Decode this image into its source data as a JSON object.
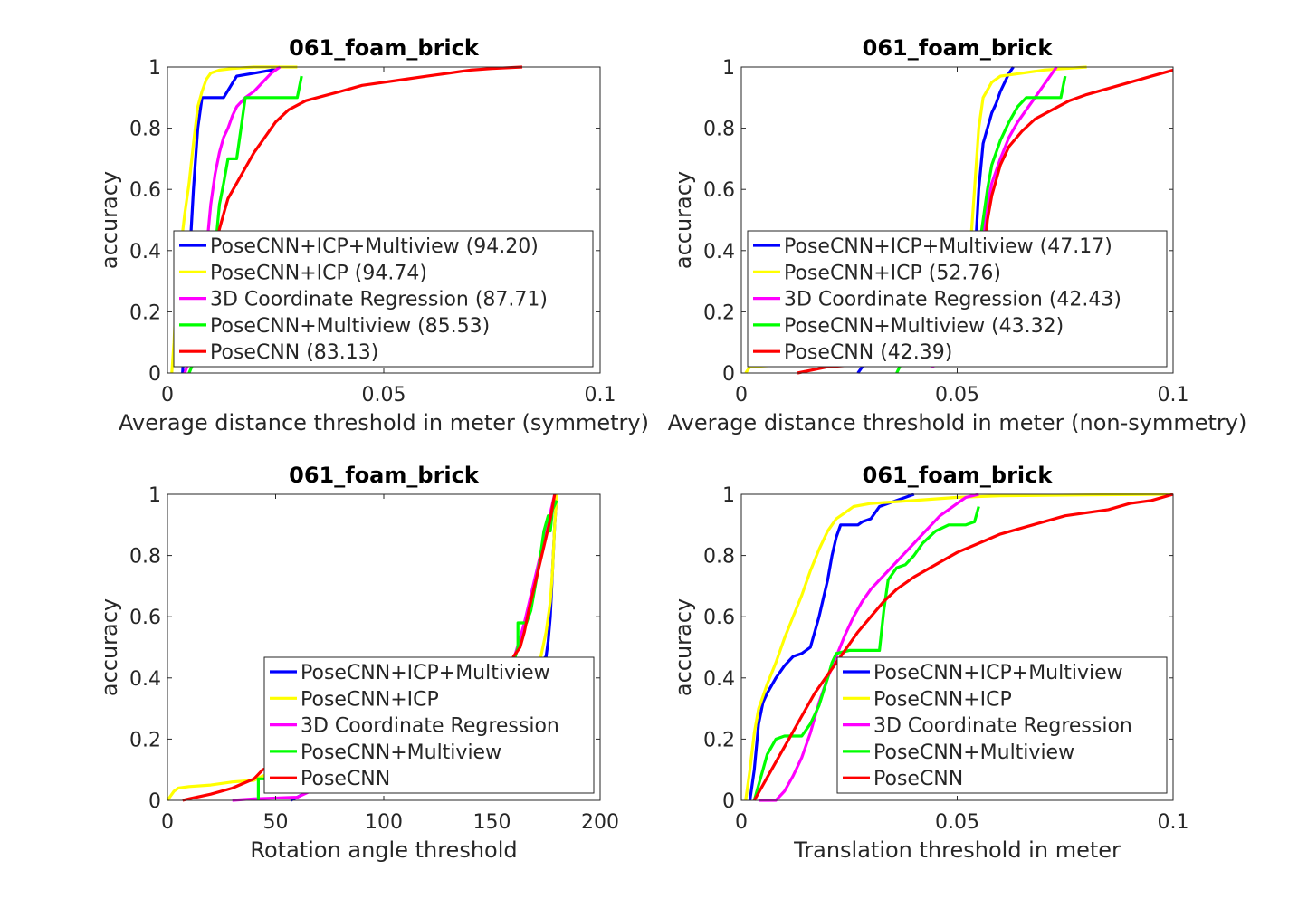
{
  "chart_data": [
    {
      "type": "line",
      "title": "061_foam_brick",
      "xlabel": "Average distance threshold in meter (symmetry)",
      "ylabel": "accuracy",
      "xlim": [
        0,
        0.1
      ],
      "ylim": [
        0,
        1
      ],
      "xticks": [
        0,
        0.05,
        0.1
      ],
      "xtick_labels": [
        "0",
        "0.05",
        "0.1"
      ],
      "yticks": [
        0,
        0.2,
        0.4,
        0.6,
        0.8,
        1
      ],
      "ytick_labels": [
        "0",
        "0.2",
        "0.4",
        "0.6",
        "0.8",
        "1"
      ],
      "legend_position": "bottom-right",
      "series": [
        {
          "name": "PoseCNN+ICP+Multiview (94.20)",
          "color": "#0000ff",
          "x": [
            0.0035,
            0.004,
            0.005,
            0.006,
            0.007,
            0.008,
            0.009,
            0.01,
            0.013,
            0.016,
            0.02,
            0.024,
            0.025
          ],
          "y": [
            0.0,
            0.12,
            0.35,
            0.6,
            0.8,
            0.9,
            0.9,
            0.9,
            0.9,
            0.97,
            0.98,
            0.99,
            1.0
          ]
        },
        {
          "name": "PoseCNN+ICP (94.74)",
          "color": "#ffff00",
          "x": [
            0.001,
            0.0015,
            0.002,
            0.003,
            0.004,
            0.005,
            0.006,
            0.007,
            0.008,
            0.009,
            0.01,
            0.012,
            0.015,
            0.02,
            0.03
          ],
          "y": [
            0.0,
            0.1,
            0.25,
            0.4,
            0.52,
            0.62,
            0.75,
            0.87,
            0.92,
            0.96,
            0.98,
            0.99,
            0.995,
            1.0,
            1.0
          ]
        },
        {
          "name": "3D Coordinate Regression (87.71)",
          "color": "#ff00ff",
          "x": [
            0.004,
            0.006,
            0.008,
            0.009,
            0.01,
            0.011,
            0.012,
            0.013,
            0.014,
            0.015,
            0.016,
            0.018,
            0.02,
            0.022,
            0.024,
            0.026
          ],
          "y": [
            0.0,
            0.08,
            0.25,
            0.4,
            0.55,
            0.65,
            0.72,
            0.77,
            0.8,
            0.84,
            0.87,
            0.9,
            0.92,
            0.95,
            0.98,
            1.0
          ]
        },
        {
          "name": "PoseCNN+Multiview (85.53)",
          "color": "#00ff00",
          "x": [
            0.005,
            0.008,
            0.01,
            0.011,
            0.012,
            0.013,
            0.014,
            0.016,
            0.017,
            0.018,
            0.02,
            0.024,
            0.03,
            0.031
          ],
          "y": [
            0.0,
            0.1,
            0.25,
            0.4,
            0.55,
            0.62,
            0.7,
            0.7,
            0.8,
            0.9,
            0.9,
            0.9,
            0.9,
            0.97
          ]
        },
        {
          "name": "PoseCNN (83.13)",
          "color": "#ff0000",
          "x": [
            0.011,
            0.012,
            0.013,
            0.014,
            0.016,
            0.018,
            0.02,
            0.022,
            0.025,
            0.028,
            0.032,
            0.036,
            0.04,
            0.045,
            0.05,
            0.055,
            0.06,
            0.065,
            0.07,
            0.075,
            0.082
          ],
          "y": [
            0.4,
            0.47,
            0.52,
            0.57,
            0.62,
            0.67,
            0.72,
            0.76,
            0.82,
            0.86,
            0.89,
            0.905,
            0.92,
            0.94,
            0.95,
            0.96,
            0.97,
            0.98,
            0.99,
            0.995,
            1.0
          ]
        }
      ]
    },
    {
      "type": "line",
      "title": "061_foam_brick",
      "xlabel": "Average distance threshold in meter (non-symmetry)",
      "ylabel": "accuracy",
      "xlim": [
        0,
        0.1
      ],
      "ylim": [
        0,
        1
      ],
      "xticks": [
        0,
        0.05,
        0.1
      ],
      "xtick_labels": [
        "0",
        "0.05",
        "0.1"
      ],
      "yticks": [
        0,
        0.2,
        0.4,
        0.6,
        0.8,
        1
      ],
      "ytick_labels": [
        "0",
        "0.2",
        "0.4",
        "0.6",
        "0.8",
        "1"
      ],
      "legend_position": "bottom-right",
      "series": [
        {
          "name": "PoseCNN+ICP+Multiview (47.17)",
          "color": "#0000ff",
          "x": [
            0.027,
            0.028,
            0.054,
            0.055,
            0.056,
            0.057,
            0.058,
            0.059,
            0.06,
            0.061,
            0.062,
            0.063
          ],
          "y": [
            0.0,
            0.02,
            0.35,
            0.6,
            0.75,
            0.8,
            0.85,
            0.88,
            0.92,
            0.95,
            0.98,
            1.0
          ]
        },
        {
          "name": "PoseCNN+ICP (52.76)",
          "color": "#ffff00",
          "x": [
            0.001,
            0.002,
            0.048,
            0.052,
            0.053,
            0.054,
            0.055,
            0.056,
            0.058,
            0.06,
            0.065,
            0.07,
            0.075,
            0.08
          ],
          "y": [
            0.0,
            0.02,
            0.06,
            0.2,
            0.4,
            0.6,
            0.8,
            0.9,
            0.95,
            0.97,
            0.98,
            0.99,
            0.995,
            1.0
          ]
        },
        {
          "name": "3D Coordinate Regression (42.43)",
          "color": "#ff00ff",
          "x": [
            0.044,
            0.046,
            0.054,
            0.055,
            0.056,
            0.057,
            0.058,
            0.06,
            0.062,
            0.064,
            0.066,
            0.068,
            0.07,
            0.072,
            0.073
          ],
          "y": [
            0.02,
            0.03,
            0.1,
            0.3,
            0.45,
            0.55,
            0.62,
            0.7,
            0.77,
            0.82,
            0.86,
            0.9,
            0.94,
            0.98,
            1.0
          ]
        },
        {
          "name": "PoseCNN+Multiview (43.32)",
          "color": "#00ff00",
          "x": [
            0.036,
            0.037,
            0.055,
            0.056,
            0.057,
            0.058,
            0.06,
            0.062,
            0.064,
            0.066,
            0.07,
            0.074,
            0.075
          ],
          "y": [
            0.0,
            0.03,
            0.4,
            0.5,
            0.6,
            0.68,
            0.76,
            0.82,
            0.87,
            0.9,
            0.9,
            0.9,
            0.97
          ]
        },
        {
          "name": "PoseCNN (42.39)",
          "color": "#ff0000",
          "x": [
            0.013,
            0.02,
            0.03,
            0.04,
            0.045,
            0.055,
            0.056,
            0.057,
            0.058,
            0.06,
            0.062,
            0.065,
            0.068,
            0.072,
            0.076,
            0.08,
            0.085,
            0.09,
            0.095,
            0.1
          ],
          "y": [
            0.0,
            0.02,
            0.03,
            0.03,
            0.04,
            0.2,
            0.35,
            0.5,
            0.58,
            0.68,
            0.74,
            0.79,
            0.83,
            0.86,
            0.89,
            0.91,
            0.93,
            0.95,
            0.97,
            0.99
          ]
        }
      ]
    },
    {
      "type": "line",
      "title": "061_foam_brick",
      "xlabel": "Rotation angle threshold",
      "ylabel": "accuracy",
      "xlim": [
        0,
        200
      ],
      "ylim": [
        0,
        1
      ],
      "xticks": [
        0,
        50,
        100,
        150,
        200
      ],
      "xtick_labels": [
        "0",
        "50",
        "100",
        "150",
        "200"
      ],
      "yticks": [
        0,
        0.2,
        0.4,
        0.6,
        0.8,
        1
      ],
      "ytick_labels": [
        "0",
        "0.2",
        "0.4",
        "0.6",
        "0.8",
        "1"
      ],
      "legend_position": "bottom-right",
      "series": [
        {
          "name": "PoseCNN+ICP+Multiview",
          "color": "#0000ff",
          "x": [
            57,
            60,
            172,
            175,
            176,
            177,
            178,
            179,
            180
          ],
          "y": [
            0.0,
            0.01,
            0.45,
            0.47,
            0.52,
            0.6,
            0.75,
            0.9,
            1.0
          ]
        },
        {
          "name": "PoseCNN+ICP",
          "color": "#ffff00",
          "x": [
            0,
            3,
            5,
            10,
            20,
            30,
            40,
            44,
            155,
            165,
            170,
            172,
            175,
            177,
            178,
            179,
            180
          ],
          "y": [
            0.0,
            0.03,
            0.04,
            0.045,
            0.05,
            0.06,
            0.065,
            0.08,
            0.2,
            0.35,
            0.4,
            0.45,
            0.55,
            0.65,
            0.75,
            0.9,
            1.0
          ]
        },
        {
          "name": "3D Coordinate Regression",
          "color": "#ff00ff",
          "x": [
            30,
            40,
            60,
            150,
            158,
            160,
            163,
            165,
            167,
            169,
            171,
            173,
            175,
            177,
            179
          ],
          "y": [
            0.0,
            0.005,
            0.01,
            0.3,
            0.4,
            0.46,
            0.53,
            0.58,
            0.64,
            0.7,
            0.76,
            0.82,
            0.88,
            0.94,
            1.0
          ]
        },
        {
          "name": "PoseCNN+Multiview",
          "color": "#00ff00",
          "x": [
            42,
            42,
            45,
            50,
            60,
            155,
            160,
            162,
            162,
            166,
            168,
            170,
            172,
            174,
            176,
            177,
            178,
            180
          ],
          "y": [
            0.0,
            0.07,
            0.07,
            0.07,
            0.07,
            0.3,
            0.45,
            0.5,
            0.58,
            0.58,
            0.62,
            0.7,
            0.78,
            0.88,
            0.93,
            0.88,
            0.95,
            0.98
          ]
        },
        {
          "name": "PoseCNN",
          "color": "#ff0000",
          "x": [
            7,
            10,
            20,
            30,
            35,
            40,
            42,
            44,
            158,
            160,
            163,
            165,
            167,
            169,
            171,
            173,
            175,
            177,
            178,
            179
          ],
          "y": [
            0.0,
            0.005,
            0.02,
            0.04,
            0.055,
            0.07,
            0.085,
            0.1,
            0.44,
            0.47,
            0.5,
            0.55,
            0.62,
            0.68,
            0.74,
            0.8,
            0.86,
            0.92,
            0.96,
            1.0
          ]
        }
      ]
    },
    {
      "type": "line",
      "title": "061_foam_brick",
      "xlabel": "Translation threshold in meter",
      "ylabel": "accuracy",
      "xlim": [
        0,
        0.1
      ],
      "ylim": [
        0,
        1
      ],
      "xticks": [
        0,
        0.05,
        0.1
      ],
      "xtick_labels": [
        "0",
        "0.05",
        "0.1"
      ],
      "yticks": [
        0,
        0.2,
        0.4,
        0.6,
        0.8,
        1
      ],
      "ytick_labels": [
        "0",
        "0.2",
        "0.4",
        "0.6",
        "0.8",
        "1"
      ],
      "legend_position": "bottom-right",
      "series": [
        {
          "name": "PoseCNN+ICP+Multiview",
          "color": "#0000ff",
          "x": [
            0.002,
            0.003,
            0.004,
            0.005,
            0.006,
            0.008,
            0.01,
            0.012,
            0.014,
            0.016,
            0.017,
            0.018,
            0.019,
            0.02,
            0.021,
            0.022,
            0.023,
            0.024,
            0.027,
            0.028,
            0.03,
            0.032,
            0.034,
            0.036,
            0.038,
            0.04
          ],
          "y": [
            0.0,
            0.1,
            0.25,
            0.32,
            0.35,
            0.4,
            0.44,
            0.47,
            0.48,
            0.5,
            0.55,
            0.6,
            0.66,
            0.72,
            0.8,
            0.86,
            0.9,
            0.9,
            0.9,
            0.91,
            0.92,
            0.96,
            0.97,
            0.98,
            0.99,
            1.0
          ]
        },
        {
          "name": "PoseCNN+ICP",
          "color": "#ffff00",
          "x": [
            0.001,
            0.002,
            0.003,
            0.004,
            0.005,
            0.006,
            0.008,
            0.01,
            0.012,
            0.014,
            0.016,
            0.018,
            0.02,
            0.022,
            0.024,
            0.026,
            0.03,
            0.04,
            0.05,
            0.06,
            0.08,
            0.1
          ],
          "y": [
            0.0,
            0.1,
            0.22,
            0.3,
            0.34,
            0.38,
            0.45,
            0.53,
            0.6,
            0.67,
            0.75,
            0.82,
            0.88,
            0.92,
            0.94,
            0.96,
            0.97,
            0.98,
            0.99,
            0.995,
            0.998,
            1.0
          ]
        },
        {
          "name": "3D Coordinate Regression",
          "color": "#ff00ff",
          "x": [
            0.004,
            0.008,
            0.01,
            0.012,
            0.014,
            0.016,
            0.018,
            0.02,
            0.022,
            0.024,
            0.026,
            0.028,
            0.03,
            0.032,
            0.034,
            0.036,
            0.038,
            0.04,
            0.042,
            0.044,
            0.046,
            0.048,
            0.05,
            0.052,
            0.055
          ],
          "y": [
            0.0,
            0.0,
            0.03,
            0.08,
            0.14,
            0.22,
            0.32,
            0.4,
            0.47,
            0.54,
            0.6,
            0.65,
            0.69,
            0.72,
            0.75,
            0.78,
            0.81,
            0.84,
            0.87,
            0.9,
            0.93,
            0.95,
            0.97,
            0.99,
            1.0
          ]
        },
        {
          "name": "PoseCNN+Multiview",
          "color": "#00ff00",
          "x": [
            0.003,
            0.004,
            0.005,
            0.006,
            0.008,
            0.01,
            0.012,
            0.014,
            0.016,
            0.017,
            0.018,
            0.02,
            0.021,
            0.022,
            0.025,
            0.028,
            0.03,
            0.032,
            0.033,
            0.034,
            0.036,
            0.038,
            0.04,
            0.042,
            0.045,
            0.048,
            0.05,
            0.052,
            0.054,
            0.055
          ],
          "y": [
            0.0,
            0.05,
            0.1,
            0.15,
            0.2,
            0.21,
            0.21,
            0.21,
            0.25,
            0.28,
            0.31,
            0.4,
            0.45,
            0.48,
            0.49,
            0.49,
            0.49,
            0.49,
            0.62,
            0.72,
            0.76,
            0.77,
            0.8,
            0.84,
            0.88,
            0.9,
            0.9,
            0.9,
            0.91,
            0.96
          ]
        },
        {
          "name": "PoseCNN",
          "color": "#ff0000",
          "x": [
            0.003,
            0.005,
            0.007,
            0.009,
            0.011,
            0.013,
            0.015,
            0.017,
            0.019,
            0.021,
            0.023,
            0.025,
            0.027,
            0.03,
            0.033,
            0.036,
            0.04,
            0.045,
            0.05,
            0.055,
            0.06,
            0.065,
            0.07,
            0.075,
            0.08,
            0.085,
            0.09,
            0.095,
            0.1
          ],
          "y": [
            0.0,
            0.05,
            0.1,
            0.15,
            0.2,
            0.25,
            0.3,
            0.35,
            0.39,
            0.43,
            0.47,
            0.51,
            0.55,
            0.6,
            0.65,
            0.69,
            0.73,
            0.77,
            0.81,
            0.84,
            0.87,
            0.89,
            0.91,
            0.93,
            0.94,
            0.95,
            0.97,
            0.98,
            1.0
          ]
        }
      ]
    }
  ]
}
